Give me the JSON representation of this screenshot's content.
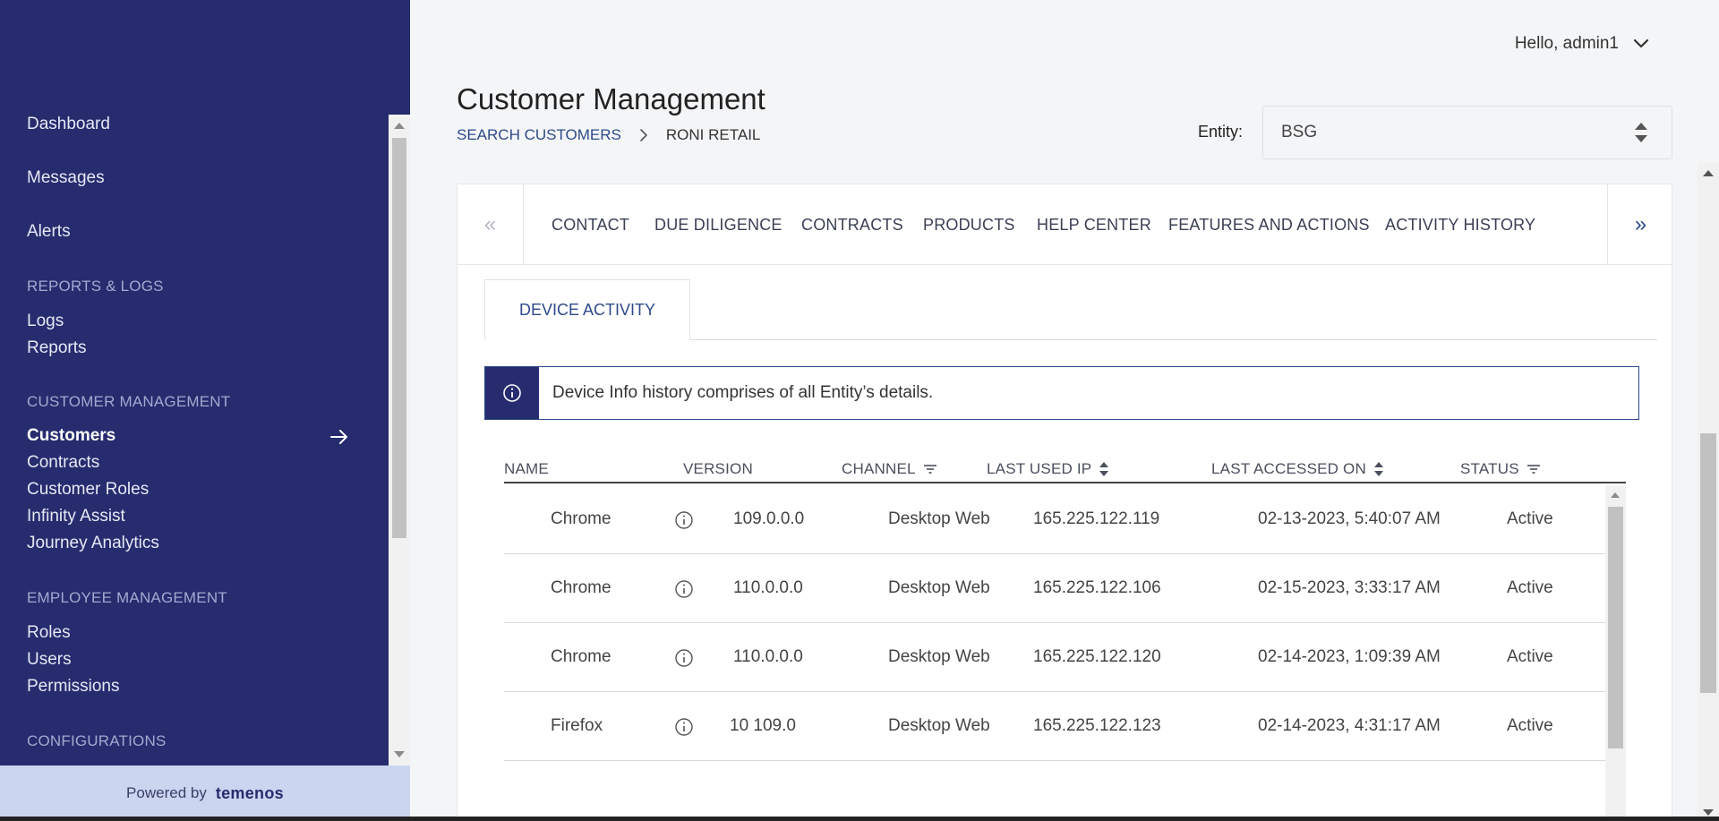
{
  "header": {
    "user_greeting": "Hello, admin1",
    "page_title": "Customer Management",
    "breadcrumb": {
      "parent": "SEARCH CUSTOMERS",
      "current": "RONI RETAIL"
    },
    "entity": {
      "label": "Entity:",
      "value": "BSG"
    }
  },
  "sidebar": {
    "items": {
      "dashboard": "Dashboard",
      "messages": "Messages",
      "alerts": "Alerts",
      "reports_logs_heading": "REPORTS & LOGS",
      "logs": "Logs",
      "reports": "Reports",
      "customer_mgmt_heading": "CUSTOMER MANAGEMENT",
      "customers": "Customers",
      "contracts": "Contracts",
      "customer_roles": "Customer Roles",
      "infinity_assist": "Infinity Assist",
      "journey_analytics": "Journey Analytics",
      "employee_mgmt_heading": "EMPLOYEE MANAGEMENT",
      "roles": "Roles",
      "users": "Users",
      "permissions": "Permissions",
      "configurations_heading": "CONFIGURATIONS"
    },
    "powered_by": "Powered by",
    "brand": "temenos"
  },
  "tabs": {
    "contact": "CONTACT",
    "due_diligence": "DUE DILIGENCE",
    "contracts": "CONTRACTS",
    "products": "PRODUCTS",
    "help_center": "HELP CENTER",
    "features_actions": "FEATURES AND ACTIONS",
    "activity_history": "ACTIVITY HISTORY"
  },
  "subtab": "DEVICE ACTIVITY",
  "info_message": "Device Info history comprises of all Entity’s details.",
  "table": {
    "columns": {
      "name": "NAME",
      "version": "VERSION",
      "channel": "CHANNEL",
      "last_ip": "LAST USED IP",
      "last_accessed": "LAST ACCESSED ON",
      "status": "STATUS"
    },
    "rows": [
      {
        "name": "Chrome",
        "version": "109.0.0.0",
        "channel": "Desktop Web",
        "ip": "165.225.122.119",
        "accessed": "02-13-2023, 5:40:07 AM",
        "status": "Active"
      },
      {
        "name": "Chrome",
        "version": "110.0.0.0",
        "channel": "Desktop Web",
        "ip": "165.225.122.106",
        "accessed": "02-15-2023, 3:33:17 AM",
        "status": "Active"
      },
      {
        "name": "Chrome",
        "version": "110.0.0.0",
        "channel": "Desktop Web",
        "ip": "165.225.122.120",
        "accessed": "02-14-2023, 1:09:39 AM",
        "status": "Active"
      },
      {
        "name": "Firefox",
        "version": "10 109.0",
        "channel": "Desktop Web",
        "ip": "165.225.122.123",
        "accessed": "02-14-2023, 4:31:17 AM",
        "status": "Active"
      }
    ]
  },
  "colors": {
    "sidebar_bg": "#262c6e",
    "accent": "#2e4a8a",
    "powered_bg": "#cbd5f0"
  },
  "icons": [
    "arrow-right-icon",
    "chevron-down-icon",
    "sort-icon",
    "filter-icon",
    "info-icon",
    "double-chevron-left-icon",
    "double-chevron-right-icon"
  ]
}
